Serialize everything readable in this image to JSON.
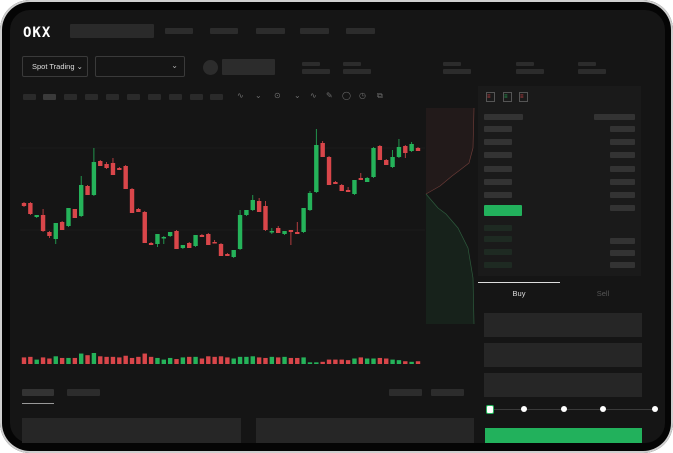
{
  "header": {
    "logo": "OKX"
  },
  "market_bar": {
    "mode_button": "Spot Trading",
    "chevron": "chevron-down-icon"
  },
  "order_form": {
    "tabs": [
      "Buy",
      "Sell"
    ],
    "active_tab": "Buy",
    "slider_percent": 0
  },
  "colors": {
    "up": "#25b35a",
    "down": "#d9464a",
    "background": "#151515",
    "buy_button": "#22b15c"
  },
  "chart": {
    "type": "candlestick",
    "candles": [
      [
        67,
        68,
        63,
        64
      ],
      [
        67,
        68,
        55,
        56
      ],
      [
        53,
        55,
        52,
        55
      ],
      [
        55,
        61,
        38,
        39
      ],
      [
        38,
        39,
        32,
        34
      ],
      [
        31,
        47,
        26,
        47
      ],
      [
        48,
        49,
        40,
        40
      ],
      [
        44,
        62,
        43,
        62
      ],
      [
        61,
        61,
        52,
        52
      ],
      [
        54,
        94,
        53,
        85
      ],
      [
        84,
        85,
        75,
        75
      ],
      [
        75,
        122,
        74,
        108
      ],
      [
        109,
        110,
        104,
        104
      ],
      [
        106,
        108,
        101,
        102
      ],
      [
        107,
        112,
        95,
        95
      ],
      [
        102,
        103,
        100,
        100
      ],
      [
        104,
        105,
        81,
        81
      ],
      [
        81,
        82,
        57,
        57
      ],
      [
        61,
        62,
        58,
        58
      ],
      [
        58,
        59,
        27,
        27
      ],
      [
        27,
        28,
        25,
        25
      ],
      [
        26,
        36,
        23,
        36
      ],
      [
        32,
        34,
        26,
        33
      ],
      [
        34,
        38,
        33,
        38
      ],
      [
        39,
        40,
        21,
        21
      ],
      [
        22,
        25,
        21,
        25
      ],
      [
        27,
        28,
        22,
        22
      ],
      [
        24,
        35,
        23,
        35
      ],
      [
        35,
        36,
        33,
        33
      ],
      [
        36,
        37,
        25,
        25
      ],
      [
        28,
        30,
        27,
        27
      ],
      [
        26,
        27,
        14,
        14
      ],
      [
        16,
        17,
        14,
        14
      ],
      [
        13,
        20,
        12,
        20
      ],
      [
        21,
        60,
        20,
        55
      ],
      [
        55,
        60,
        54,
        60
      ],
      [
        60,
        75,
        59,
        70
      ],
      [
        69,
        72,
        58,
        58
      ],
      [
        64,
        69,
        39,
        40
      ],
      [
        38,
        42,
        36,
        39
      ],
      [
        42,
        44,
        37,
        37
      ],
      [
        36,
        39,
        35,
        39
      ],
      [
        40,
        40,
        25,
        38
      ],
      [
        38,
        48,
        36,
        36
      ],
      [
        38,
        62,
        37,
        62
      ],
      [
        60,
        79,
        59,
        77
      ],
      [
        78,
        141,
        77,
        125
      ],
      [
        127,
        129,
        113,
        113
      ],
      [
        113,
        114,
        85,
        85
      ],
      [
        88,
        89,
        86,
        86
      ],
      [
        85,
        86,
        79,
        79
      ],
      [
        80,
        83,
        78,
        78
      ],
      [
        76,
        90,
        75,
        90
      ],
      [
        92,
        97,
        90,
        90
      ],
      [
        88,
        93,
        88,
        92
      ],
      [
        93,
        123,
        92,
        122
      ],
      [
        124,
        125,
        110,
        110
      ],
      [
        110,
        111,
        105,
        105
      ],
      [
        103,
        120,
        102,
        113
      ],
      [
        113,
        131,
        112,
        123
      ],
      [
        124,
        125,
        112,
        117
      ],
      [
        119,
        128,
        118,
        126
      ],
      [
        122,
        123,
        119,
        119
      ]
    ],
    "volumes": [
      12,
      13,
      8,
      12,
      10,
      14,
      11,
      11,
      11,
      19,
      16,
      20,
      14,
      13,
      13,
      12,
      15,
      11,
      13,
      19,
      13,
      11,
      8,
      11,
      9,
      12,
      13,
      13,
      10,
      14,
      13,
      14,
      12,
      10,
      13,
      13,
      14,
      12,
      11,
      13,
      12,
      13,
      11,
      11,
      12,
      3,
      3,
      4,
      8,
      8,
      8,
      7,
      10,
      12,
      10,
      10,
      11,
      10,
      8,
      7,
      5,
      4,
      5
    ]
  }
}
